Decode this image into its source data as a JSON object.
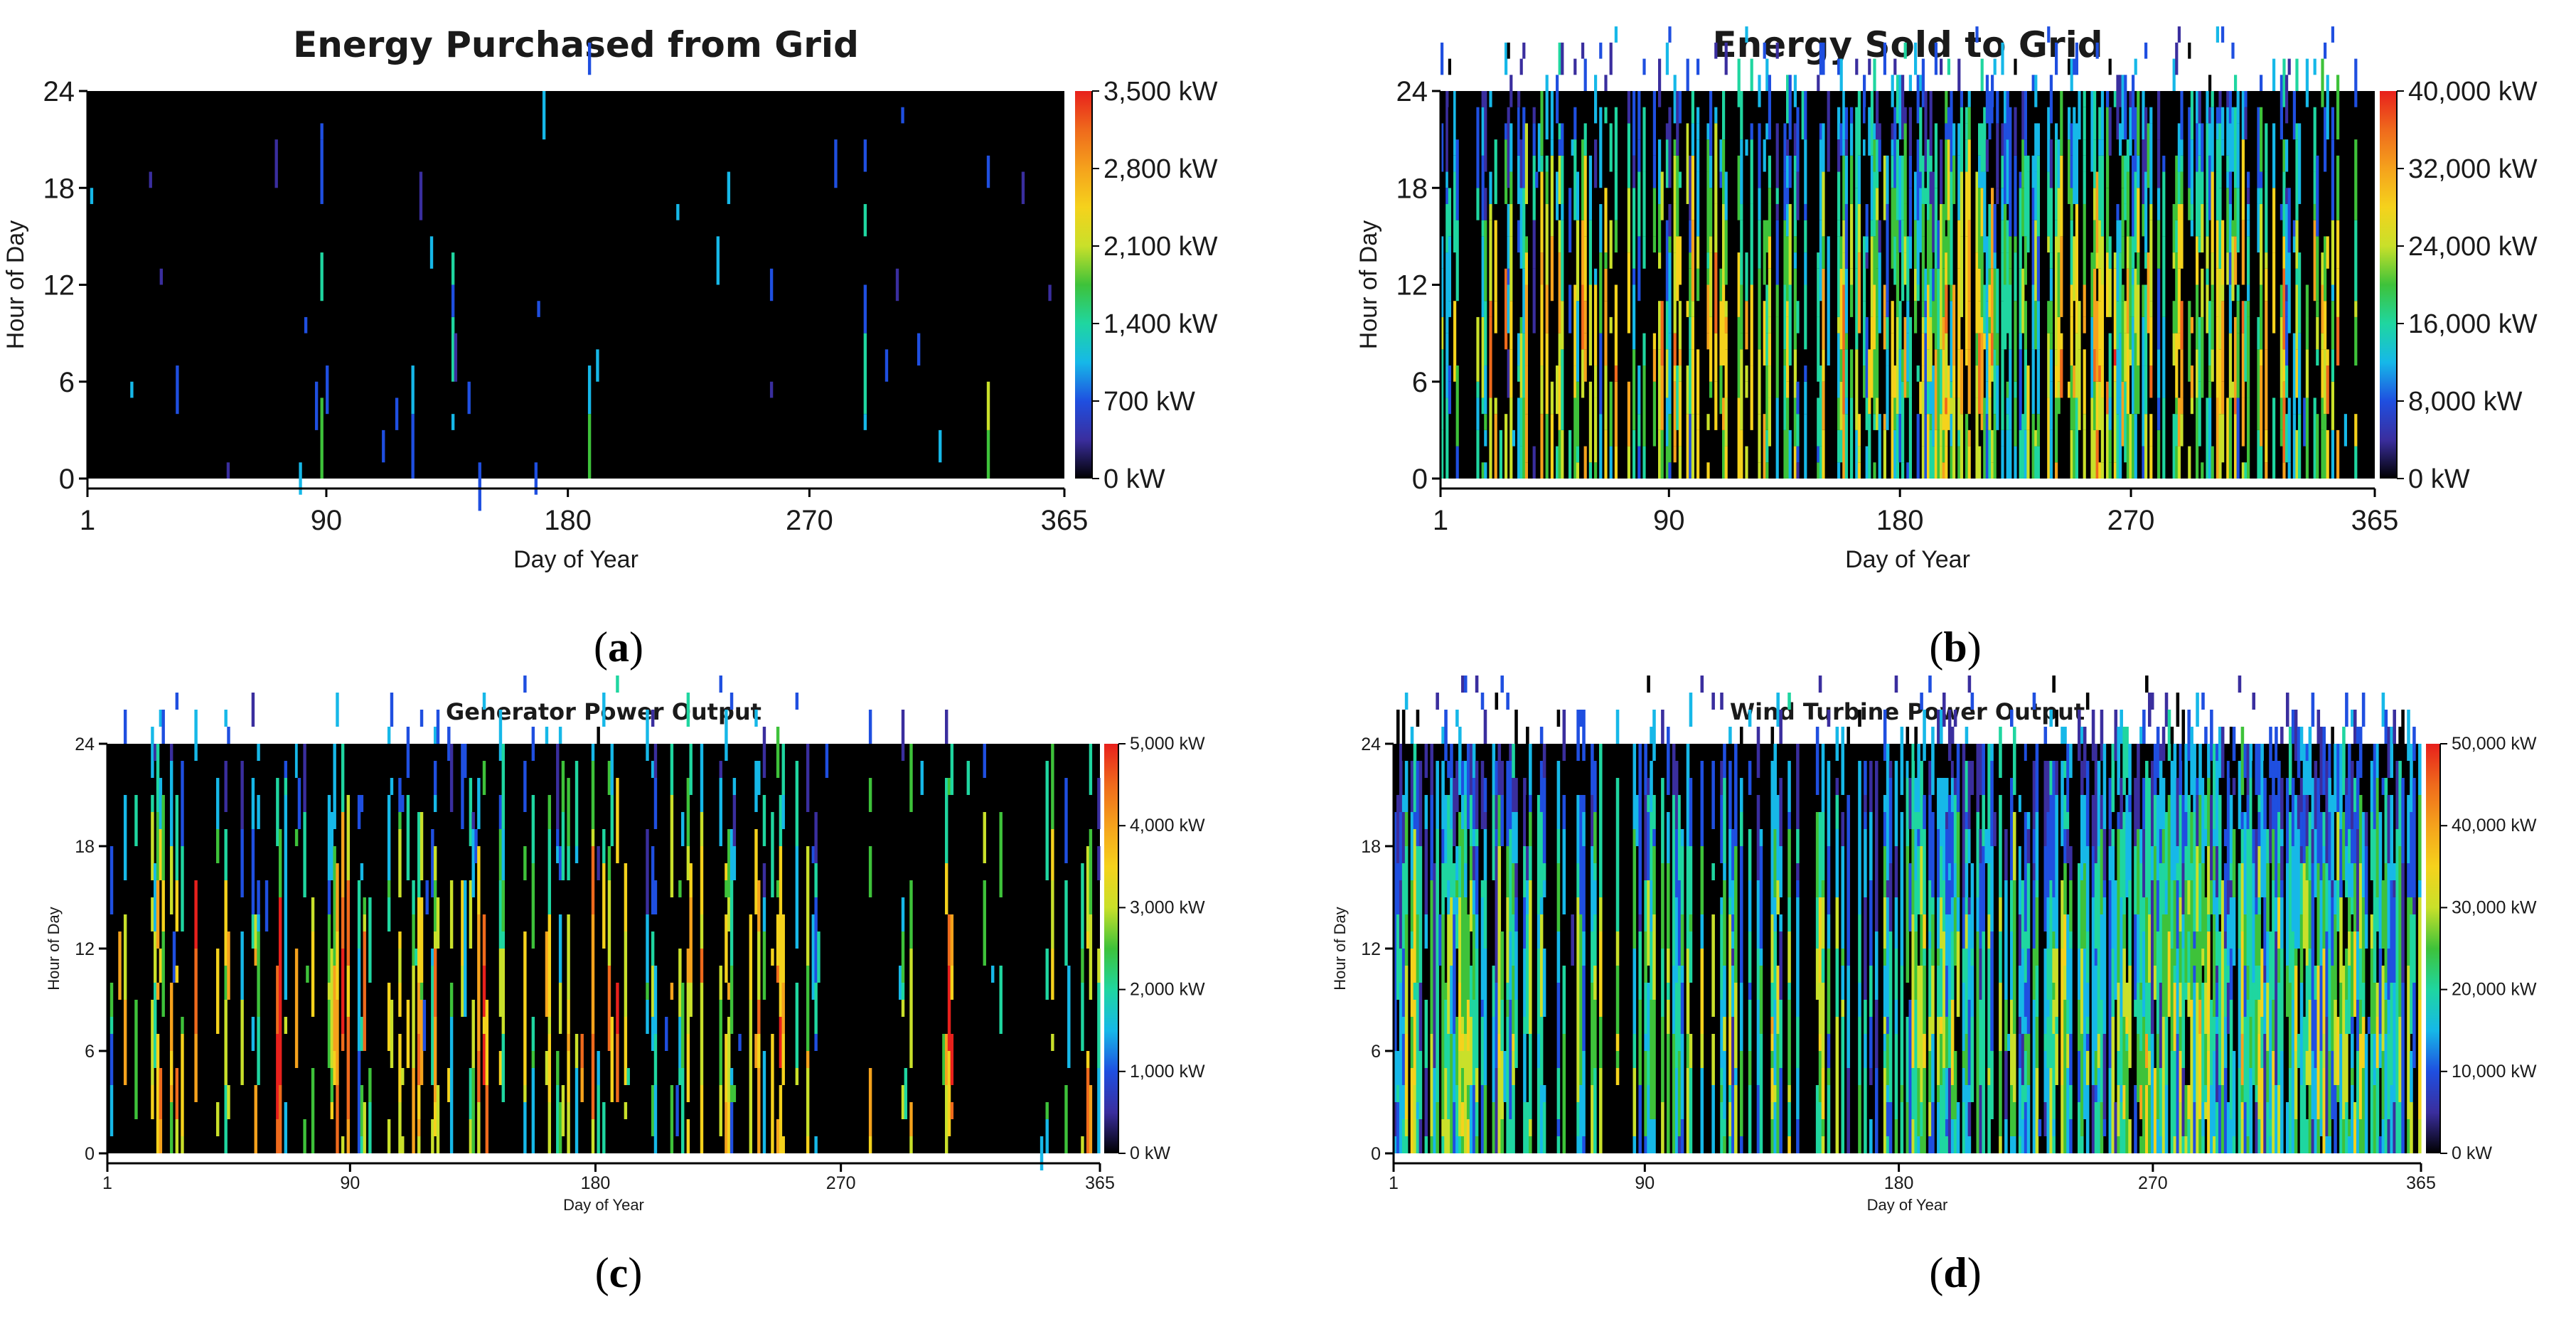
{
  "chart_data": [
    {
      "type": "heatmap",
      "id": "a",
      "caption_letter": "a",
      "title": "Energy Purchased from Grid",
      "xlabel": "Day of Year",
      "ylabel": "Hour of Day",
      "xlim": [
        1,
        365
      ],
      "ylim": [
        0,
        24
      ],
      "x_ticks": [
        1,
        90,
        180,
        270,
        365
      ],
      "y_ticks": [
        0,
        6,
        12,
        18,
        24
      ],
      "colorbar_min": 0,
      "colorbar_max": 3500,
      "colorbar_labels": [
        "0 kW",
        "700 kW",
        "1,400 kW",
        "2,100 kW",
        "2,800 kW",
        "3,500 kW"
      ],
      "density": 0.045,
      "base_level": 0.45,
      "seed": 11
    },
    {
      "type": "heatmap",
      "id": "b",
      "caption_letter": "b",
      "title": "Energy Sold to Grid",
      "xlabel": "Day of Year",
      "ylabel": "Hour of Day",
      "xlim": [
        1,
        365
      ],
      "ylim": [
        0,
        24
      ],
      "x_ticks": [
        1,
        90,
        180,
        270,
        365
      ],
      "y_ticks": [
        0,
        6,
        12,
        18,
        24
      ],
      "colorbar_min": 0,
      "colorbar_max": 40000,
      "colorbar_labels": [
        "0 kW",
        "8,000 kW",
        "16,000 kW",
        "24,000 kW",
        "32,000 kW",
        "40,000 kW"
      ],
      "density": 0.78,
      "base_level": 0.62,
      "seed": 23
    },
    {
      "type": "heatmap",
      "id": "c",
      "caption_letter": "c",
      "title": "Generator Power Output",
      "xlabel": "Day of Year",
      "ylabel": "Hour of Day",
      "xlim": [
        1,
        365
      ],
      "ylim": [
        0,
        24
      ],
      "x_ticks": [
        1,
        90,
        180,
        270,
        365
      ],
      "y_ticks": [
        0,
        6,
        12,
        18,
        24
      ],
      "colorbar_min": 0,
      "colorbar_max": 5000,
      "colorbar_labels": [
        "0 kW",
        "1,000 kW",
        "2,000 kW",
        "3,000 kW",
        "4,000 kW",
        "5,000 kW"
      ],
      "density": 0.42,
      "base_level": 0.7,
      "seed": 37
    },
    {
      "type": "heatmap",
      "id": "d",
      "caption_letter": "d",
      "title": "Wind Turbine Power Output",
      "xlabel": "Day of Year",
      "ylabel": "Hour of Day",
      "xlim": [
        1,
        365
      ],
      "ylim": [
        0,
        24
      ],
      "x_ticks": [
        1,
        90,
        180,
        270,
        365
      ],
      "y_ticks": [
        0,
        6,
        12,
        18,
        24
      ],
      "colorbar_min": 0,
      "colorbar_max": 50000,
      "colorbar_labels": [
        "0 kW",
        "10,000 kW",
        "20,000 kW",
        "30,000 kW",
        "40,000 kW",
        "50,000 kW"
      ],
      "density": 0.92,
      "base_level": 0.5,
      "seed": 53
    }
  ],
  "colormap": [
    "#000000",
    "#3a2e9e",
    "#1f4fe0",
    "#16b8e8",
    "#1fd6a0",
    "#3ec23a",
    "#c9e02a",
    "#f5d21c",
    "#f5a21c",
    "#ef6a1c",
    "#e8201c"
  ]
}
